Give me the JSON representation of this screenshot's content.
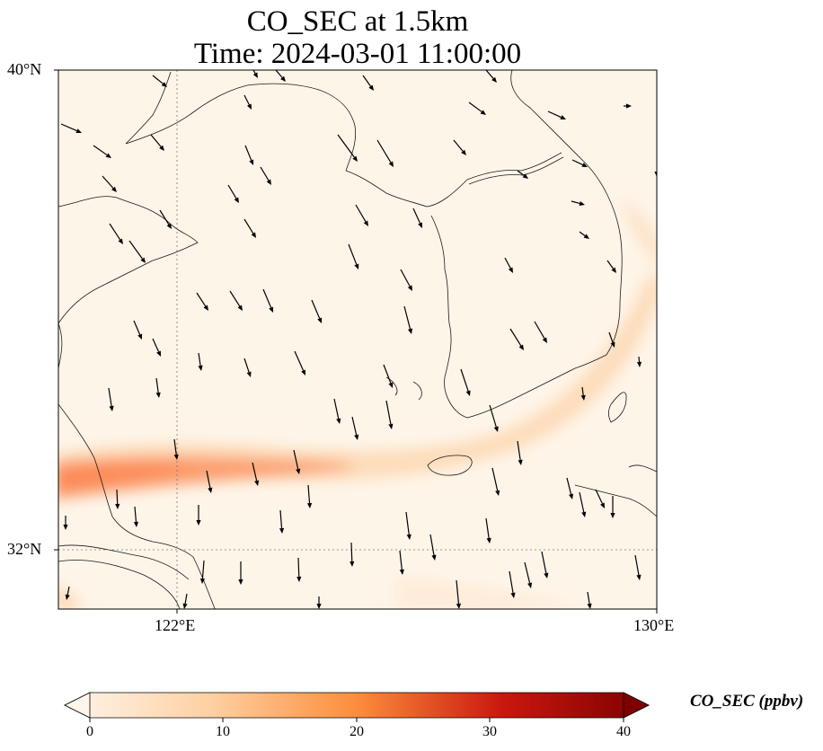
{
  "title": {
    "line1": "CO_SEC at 1.5km",
    "line2": "Time: 2024-03-01 11:00:00"
  },
  "map": {
    "lat_labels": [
      "40°N",
      "32°N"
    ],
    "lon_labels": [
      "122°E",
      "130°E"
    ],
    "gridlines": "dotted"
  },
  "colorbar": {
    "label": "CO_SEC (ppbv)",
    "ticks": [
      "0",
      "10",
      "20",
      "30",
      "40"
    ],
    "min": 0,
    "max": 40,
    "colormap": [
      "#fff5eb",
      "#fdd0a2",
      "#fd8d3c",
      "#d94801",
      "#7f0000"
    ],
    "extend": "both"
  },
  "colors": {
    "background_field": "#fef5e9",
    "plume": "#fc9a66",
    "coastline": "#1a1a1a",
    "arrows": "#000000"
  }
}
